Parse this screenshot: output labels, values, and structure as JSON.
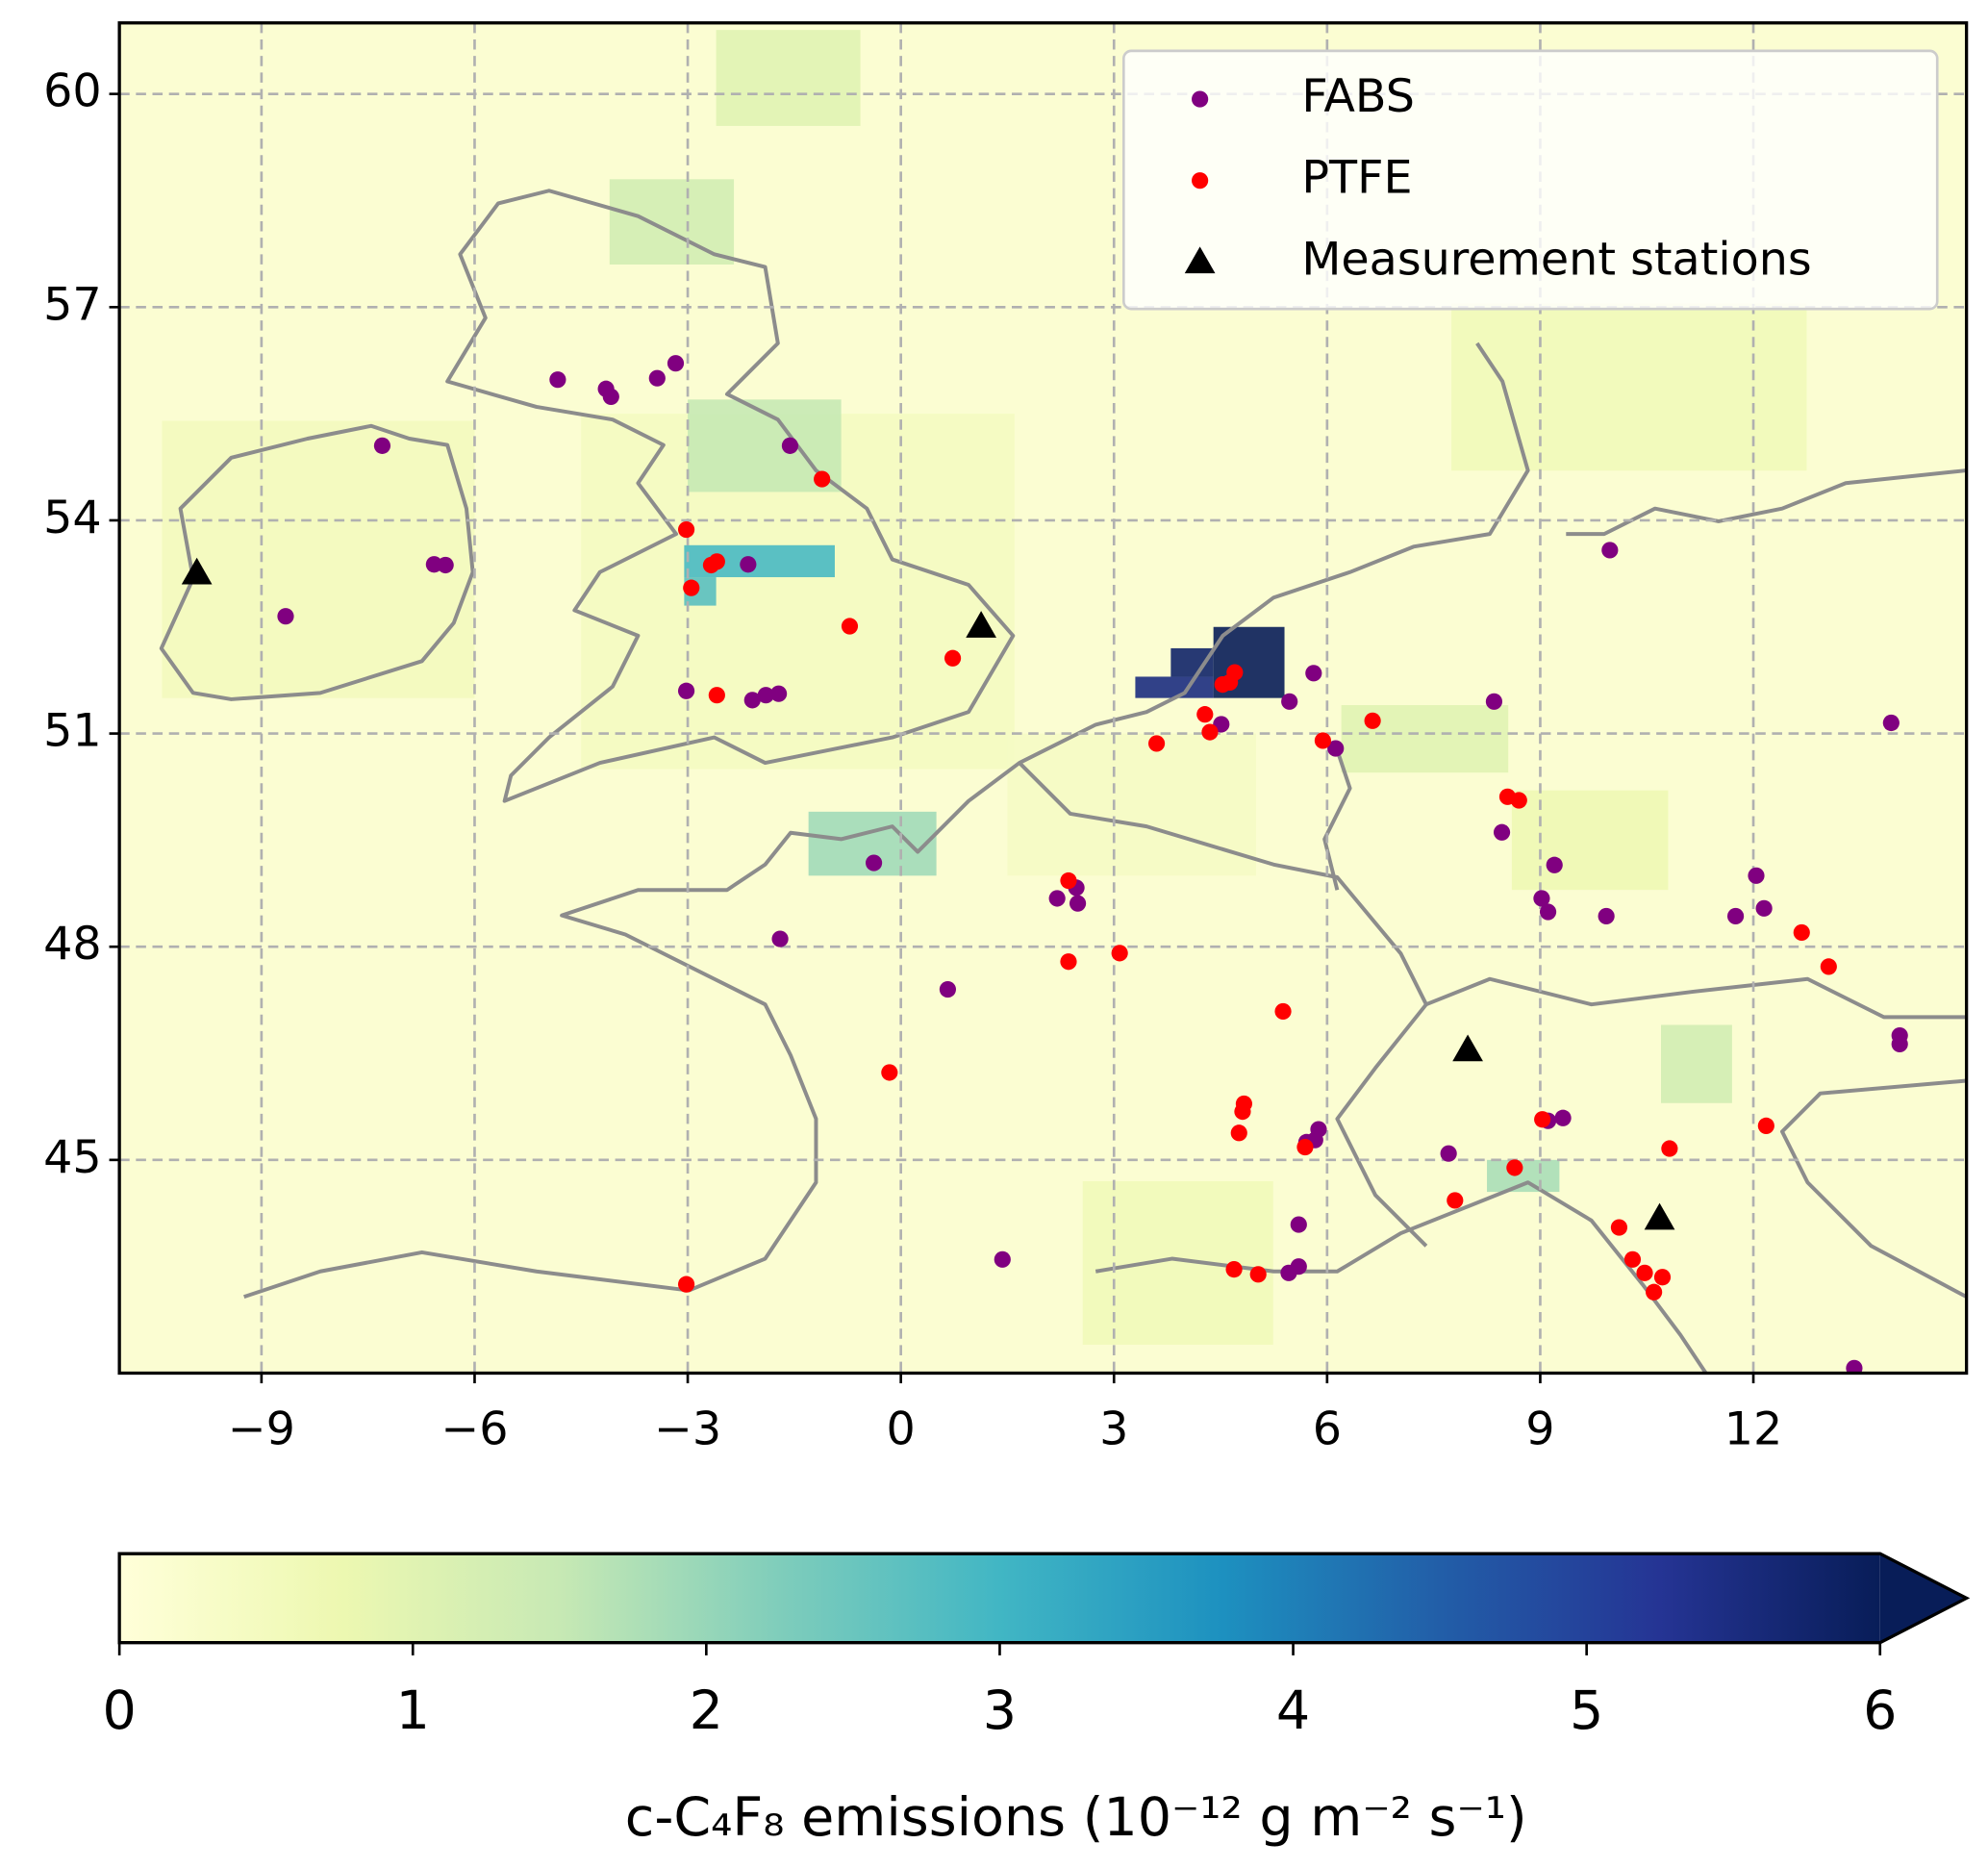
{
  "chart_data": {
    "type": "scatter",
    "xlim": [
      -11,
      15
    ],
    "ylim": [
      42,
      61
    ],
    "xticks": [
      {
        "value": -9,
        "label": "−9"
      },
      {
        "value": -6,
        "label": "−6"
      },
      {
        "value": -3,
        "label": "−3"
      },
      0,
      3,
      6,
      9,
      12
    ],
    "yticks": [
      45,
      48,
      51,
      54,
      57,
      60
    ],
    "grid": true,
    "legend": "upper right",
    "series": [
      {
        "name": "FABS",
        "color": "#800080",
        "marker": "circle",
        "x": [
          -7.3,
          -4.83,
          -4.15,
          -4.08,
          -3.43,
          -3.17,
          -1.56,
          -6.57,
          -6.41,
          -8.66,
          -2.15,
          -3.02,
          -2.09,
          -1.9,
          -1.72,
          -0.38,
          -1.7,
          0.66,
          2.2,
          2.49,
          2.47,
          1.43,
          4.51,
          5.47,
          5.81,
          6.12,
          8.35,
          9.98,
          8.46,
          9.2,
          9.02,
          9.11,
          9.93,
          12.04,
          12.15,
          11.75,
          13.94,
          14.06,
          14.06,
          5.83,
          5.88,
          5.71,
          5.6,
          5.6,
          5.46,
          7.71,
          9.32,
          9.11,
          13.42
        ],
        "values": [
          55.05,
          55.98,
          55.85,
          55.74,
          56.0,
          56.21,
          55.05,
          53.38,
          53.37,
          52.65,
          53.38,
          51.6,
          51.47,
          51.54,
          51.56,
          49.18,
          48.11,
          47.4,
          48.68,
          48.61,
          48.83,
          43.6,
          51.13,
          51.45,
          51.85,
          50.79,
          51.45,
          53.58,
          49.61,
          49.15,
          48.68,
          48.49,
          48.43,
          49.0,
          48.54,
          48.43,
          51.15,
          46.75,
          46.63,
          45.28,
          45.43,
          45.25,
          44.09,
          43.5,
          43.41,
          45.09,
          45.59,
          45.55,
          42.07
        ]
      },
      {
        "name": "PTFE",
        "color": "#ff0000",
        "marker": "circle",
        "x": [
          -3.02,
          -2.95,
          -2.67,
          -2.59,
          -1.11,
          -0.72,
          0.73,
          -2.59,
          3.6,
          4.28,
          4.35,
          4.7,
          4.63,
          4.53,
          5.94,
          6.64,
          8.54,
          8.7,
          2.36,
          2.36,
          3.08,
          5.38,
          -0.16,
          4.83,
          4.81,
          4.76,
          5.69,
          4.69,
          5.03,
          -3.02,
          7.8,
          8.64,
          9.03,
          10.82,
          12.18,
          12.68,
          13.06,
          10.11,
          10.3,
          10.47,
          10.72,
          10.6
        ],
        "values": [
          53.87,
          53.05,
          53.37,
          53.42,
          54.58,
          52.51,
          52.06,
          51.54,
          50.86,
          51.27,
          51.02,
          51.86,
          51.72,
          51.69,
          50.9,
          51.18,
          50.11,
          50.06,
          48.93,
          47.79,
          47.91,
          47.09,
          46.23,
          45.79,
          45.68,
          45.38,
          45.18,
          43.46,
          43.39,
          43.25,
          44.43,
          44.89,
          45.57,
          45.16,
          45.48,
          48.2,
          47.72,
          44.05,
          43.6,
          43.41,
          43.35,
          43.14
        ]
      },
      {
        "name": "Measurement stations",
        "color": "#000000",
        "marker": "triangle",
        "x": [
          -9.91,
          1.13,
          7.98,
          10.68
        ],
        "values": [
          53.26,
          52.51,
          46.55,
          44.18
        ]
      }
    ],
    "emission_cells": [
      [
        -10.4,
        51.5,
        -6.0,
        55.4,
        0.5
      ],
      [
        -4.5,
        50.5,
        1.6,
        55.5,
        0.45
      ],
      [
        1.5,
        49.0,
        5.0,
        51.0,
        0.4
      ],
      [
        7.75,
        54.7,
        12.75,
        57.05,
        0.6
      ],
      [
        2.56,
        42.4,
        5.24,
        44.7,
        0.6
      ],
      [
        8.6,
        48.8,
        10.8,
        50.2,
        0.7
      ],
      [
        6.2,
        50.45,
        8.55,
        51.4,
        1.0
      ],
      [
        -2.6,
        59.55,
        -0.57,
        60.9,
        1.0
      ],
      [
        -4.1,
        57.6,
        -2.35,
        58.8,
        1.3
      ],
      [
        -3.0,
        54.4,
        -0.84,
        55.7,
        1.5
      ],
      [
        -1.3,
        49.0,
        0.5,
        49.9,
        1.9
      ],
      [
        8.25,
        44.55,
        9.27,
        45.0,
        1.8
      ],
      [
        10.7,
        45.8,
        11.7,
        46.9,
        1.3
      ],
      [
        -3.05,
        53.2,
        -0.93,
        53.65,
        2.9
      ],
      [
        -3.05,
        52.8,
        -2.6,
        53.2,
        2.7
      ],
      [
        3.3,
        51.5,
        4.4,
        51.8,
        5.5
      ],
      [
        3.8,
        51.8,
        4.4,
        52.2,
        5.8
      ],
      [
        4.4,
        51.5,
        5.4,
        52.5,
        6.2
      ]
    ],
    "colorbar": {
      "label": "c-C₄F₈ emissions (10⁻¹² g m⁻² s⁻¹)",
      "lim": [
        0,
        6
      ],
      "ticks": [
        0,
        1,
        2,
        3,
        4,
        5,
        6
      ],
      "extend": "max",
      "colormap": "YlGnBu"
    }
  }
}
